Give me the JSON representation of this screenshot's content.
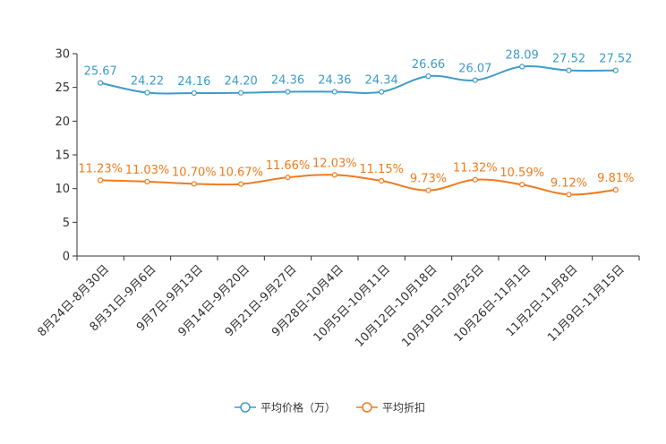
{
  "chart_data": {
    "type": "line",
    "title": "",
    "xlabel": "",
    "ylabel": "",
    "ylim": [
      0,
      30
    ],
    "yticks": [
      0,
      5,
      10,
      15,
      20,
      25,
      30
    ],
    "grid": false,
    "legend_position": "bottom",
    "categories": [
      "8月24日-8月30日",
      "8月31日-9月6日",
      "9月7日-9月13日",
      "9月14日-9月20日",
      "9月21日-9月27日",
      "9月28日-10月4日",
      "10月5日-10月11日",
      "10月12日-10月18日",
      "10月19日-10月25日",
      "10月26日-11月1日",
      "11月2日-11月8日",
      "11月9日-11月15日"
    ],
    "series": [
      {
        "name": "平均价格（万）",
        "color": "#3d9ccb",
        "values": [
          25.67,
          24.22,
          24.16,
          24.2,
          24.36,
          24.36,
          24.34,
          26.66,
          26.07,
          28.09,
          27.52,
          27.52
        ],
        "labels": [
          "25.67",
          "24.22",
          "24.16",
          "24.20",
          "24.36",
          "24.36",
          "24.34",
          "26.66",
          "26.07",
          "28.09",
          "27.52",
          "27.52"
        ]
      },
      {
        "name": "平均折扣",
        "color": "#f27b1d",
        "values": [
          11.23,
          11.03,
          10.7,
          10.67,
          11.66,
          12.03,
          11.15,
          9.73,
          11.32,
          10.59,
          9.12,
          9.81
        ],
        "labels": [
          "11.23%",
          "11.03%",
          "10.70%",
          "10.67%",
          "11.66%",
          "12.03%",
          "11.15%",
          "9.73%",
          "11.32%",
          "10.59%",
          "9.12%",
          "9.81%"
        ]
      }
    ]
  }
}
